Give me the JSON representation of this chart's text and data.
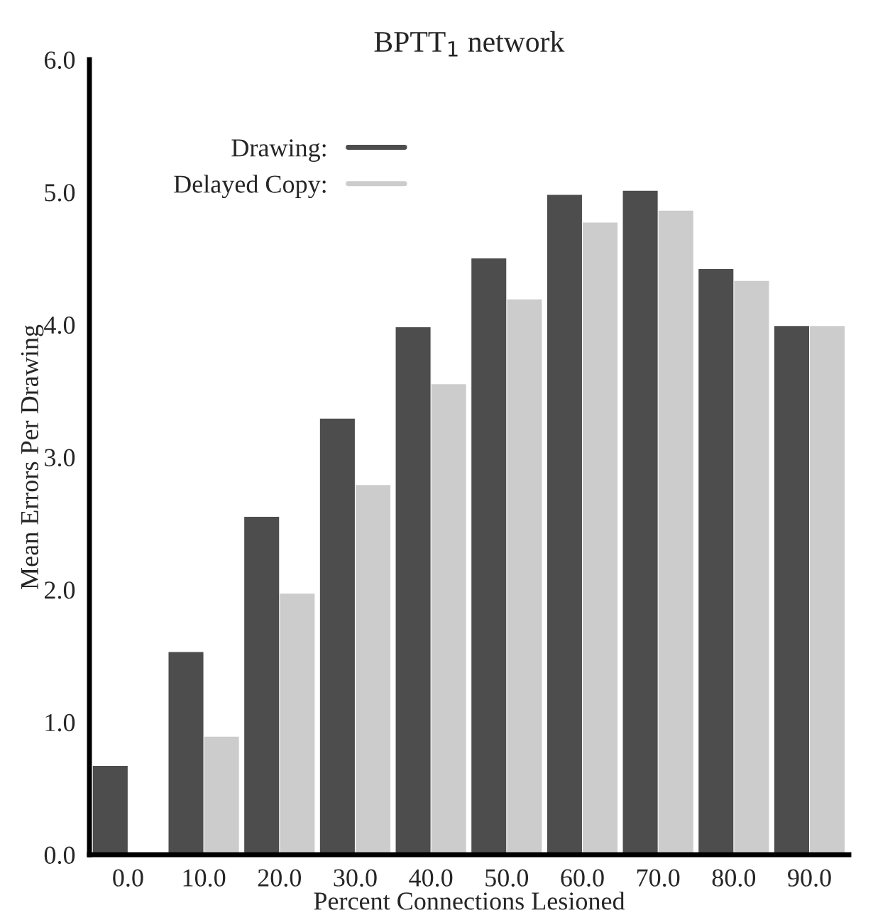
{
  "chart_data": {
    "type": "bar",
    "title": "BPTT$_{1}$ network",
    "xlabel": "Percent Connections Lesioned",
    "ylabel": "Mean Errors Per Drawing",
    "categories": [
      "0.0",
      "10.0",
      "20.0",
      "30.0",
      "40.0",
      "50.0",
      "60.0",
      "70.0",
      "80.0",
      "90.0"
    ],
    "series": [
      {
        "name": "Drawing:",
        "color": "#4d4d4d",
        "values": [
          0.67,
          1.53,
          2.55,
          3.29,
          3.98,
          4.5,
          4.98,
          5.01,
          4.42,
          3.99
        ]
      },
      {
        "name": "Delayed Copy:",
        "color": "#cccccc",
        "values": [
          null,
          0.89,
          1.97,
          2.79,
          3.55,
          4.19,
          4.77,
          4.86,
          4.33,
          3.99
        ]
      }
    ],
    "ylim": [
      0,
      6
    ],
    "yticks": [
      {
        "value": 0,
        "label": "0.0"
      },
      {
        "value": 1,
        "label": "1.0"
      },
      {
        "value": 2,
        "label": "2.0"
      },
      {
        "value": 3,
        "label": "3.0"
      },
      {
        "value": 4,
        "label": "4.0"
      },
      {
        "value": 5,
        "label": "5.0"
      },
      {
        "value": 6,
        "label": "6.0"
      }
    ],
    "grid": false,
    "legend": "top left"
  }
}
